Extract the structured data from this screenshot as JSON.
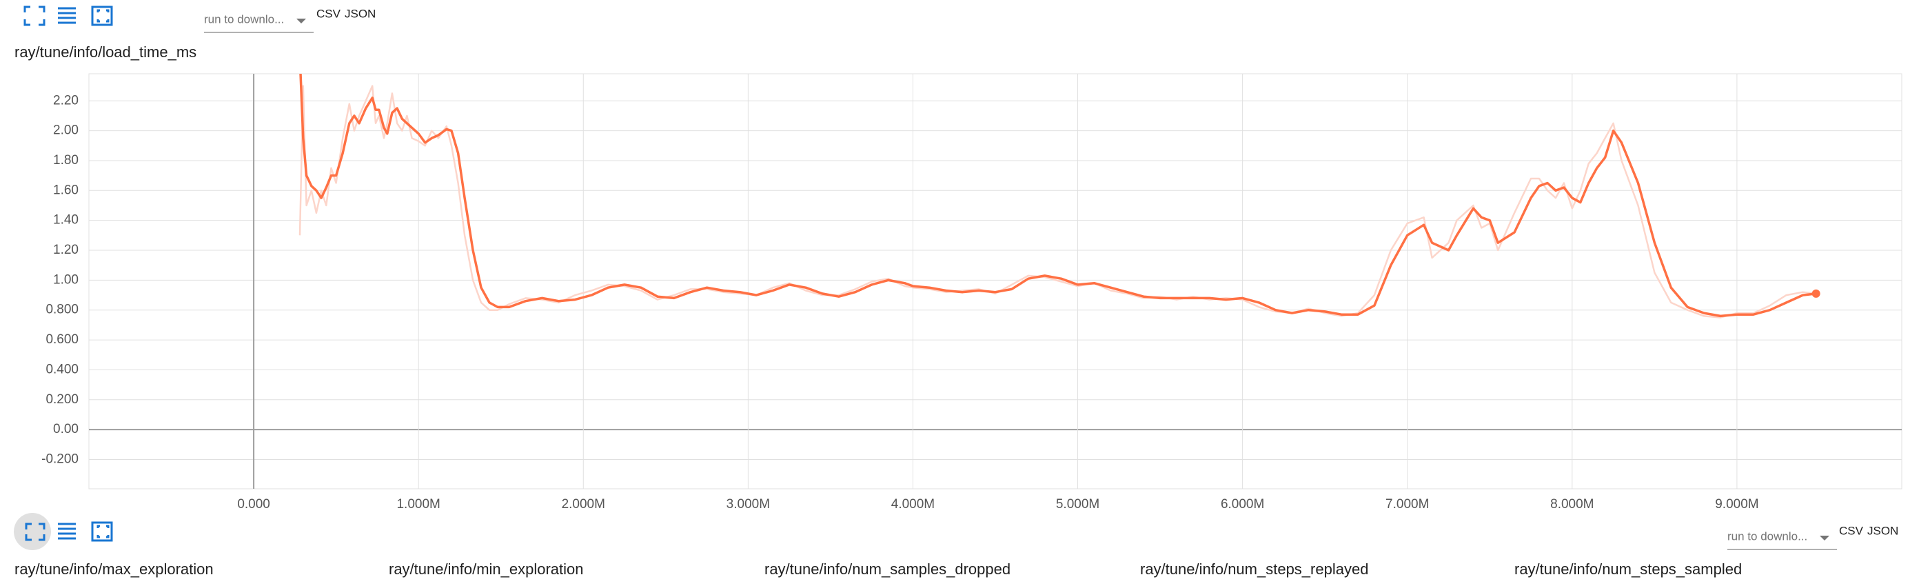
{
  "toolbars": [
    {
      "dropdown": "run to downlo...",
      "links": [
        "CSV",
        "JSON"
      ]
    },
    {
      "dropdown": "run to downlo...",
      "links": [
        "CSV",
        "JSON"
      ]
    }
  ],
  "cards": [
    {
      "title": "ray/tune/info/max_exploration"
    },
    {
      "title": "ray/tune/info/min_exploration"
    },
    {
      "title": "ray/tune/info/num_samples_dropped"
    },
    {
      "title": "ray/tune/info/num_steps_replayed"
    },
    {
      "title": "ray/tune/info/num_steps_sampled"
    }
  ],
  "chart_data": {
    "type": "line",
    "title": "ray/tune/info/load_time_ms",
    "x": [
      280000,
      300000,
      320000,
      350000,
      380000,
      410000,
      440000,
      470000,
      500000,
      540000,
      580000,
      610000,
      640000,
      680000,
      720000,
      740000,
      760000,
      790000,
      810000,
      840000,
      870000,
      900000,
      930000,
      960000,
      1000000,
      1040000,
      1080000,
      1120000,
      1170000,
      1200000,
      1240000,
      1280000,
      1330000,
      1380000,
      1430000,
      1480000,
      1550000,
      1650000,
      1750000,
      1850000,
      1950000,
      2050000,
      2150000,
      2250000,
      2350000,
      2450000,
      2550000,
      2650000,
      2750000,
      2850000,
      2950000,
      3050000,
      3150000,
      3250000,
      3350000,
      3450000,
      3550000,
      3650000,
      3750000,
      3850000,
      3950000,
      4000000,
      4100000,
      4200000,
      4300000,
      4400000,
      4500000,
      4600000,
      4700000,
      4800000,
      4900000,
      5000000,
      5100000,
      5200000,
      5300000,
      5400000,
      5500000,
      5600000,
      5700000,
      5800000,
      5900000,
      6000000,
      6100000,
      6200000,
      6300000,
      6400000,
      6500000,
      6600000,
      6700000,
      6800000,
      6900000,
      7000000,
      7100000,
      7150000,
      7250000,
      7300000,
      7400000,
      7450000,
      7500000,
      7550000,
      7650000,
      7750000,
      7800000,
      7850000,
      7900000,
      7950000,
      8000000,
      8050000,
      8100000,
      8150000,
      8200000,
      8250000,
      8300000,
      8400000,
      8500000,
      8600000,
      8700000,
      8800000,
      8900000,
      9000000,
      9100000,
      9200000,
      9300000,
      9400000,
      9480000
    ],
    "series": [
      {
        "color": "#fcd5ca",
        "values": [
          1.3,
          2.3,
          1.5,
          1.6,
          1.45,
          1.6,
          1.5,
          1.75,
          1.65,
          1.95,
          2.18,
          2.0,
          2.1,
          2.2,
          2.3,
          2.05,
          2.1,
          1.95,
          2.05,
          2.25,
          2.05,
          2.0,
          2.1,
          1.95,
          1.93,
          1.9,
          2.0,
          1.95,
          2.03,
          1.9,
          1.65,
          1.3,
          1.0,
          0.85,
          0.8,
          0.8,
          0.84,
          0.88,
          0.87,
          0.85,
          0.9,
          0.93,
          0.97,
          0.96,
          0.93,
          0.87,
          0.9,
          0.94,
          0.94,
          0.92,
          0.91,
          0.9,
          0.95,
          0.98,
          0.93,
          0.9,
          0.9,
          0.94,
          0.99,
          1.01,
          0.96,
          0.95,
          0.94,
          0.92,
          0.93,
          0.94,
          0.91,
          0.97,
          1.03,
          1.02,
          0.99,
          0.96,
          0.98,
          0.93,
          0.91,
          0.88,
          0.89,
          0.87,
          0.89,
          0.87,
          0.88,
          0.87,
          0.82,
          0.79,
          0.78,
          0.81,
          0.78,
          0.76,
          0.78,
          0.9,
          1.2,
          1.38,
          1.42,
          1.15,
          1.25,
          1.4,
          1.5,
          1.35,
          1.38,
          1.2,
          1.45,
          1.68,
          1.68,
          1.6,
          1.55,
          1.65,
          1.48,
          1.6,
          1.78,
          1.85,
          1.95,
          2.05,
          1.8,
          1.5,
          1.05,
          0.85,
          0.8,
          0.76,
          0.75,
          0.78,
          0.78,
          0.83,
          0.9,
          0.92,
          0.91
        ]
      },
      {
        "color": "#ff7043",
        "values": [
          2.5,
          1.95,
          1.7,
          1.63,
          1.6,
          1.55,
          1.62,
          1.7,
          1.7,
          1.85,
          2.05,
          2.1,
          2.05,
          2.15,
          2.22,
          2.14,
          2.14,
          2.02,
          1.98,
          2.12,
          2.15,
          2.08,
          2.05,
          2.02,
          1.98,
          1.92,
          1.95,
          1.97,
          2.01,
          2.0,
          1.85,
          1.55,
          1.2,
          0.95,
          0.85,
          0.82,
          0.82,
          0.86,
          0.88,
          0.86,
          0.87,
          0.9,
          0.95,
          0.97,
          0.95,
          0.89,
          0.88,
          0.92,
          0.95,
          0.93,
          0.92,
          0.9,
          0.93,
          0.97,
          0.95,
          0.91,
          0.89,
          0.92,
          0.97,
          1.0,
          0.98,
          0.96,
          0.95,
          0.93,
          0.92,
          0.93,
          0.92,
          0.94,
          1.01,
          1.03,
          1.01,
          0.97,
          0.98,
          0.95,
          0.92,
          0.89,
          0.88,
          0.88,
          0.88,
          0.88,
          0.87,
          0.88,
          0.85,
          0.8,
          0.78,
          0.8,
          0.79,
          0.77,
          0.77,
          0.83,
          1.1,
          1.3,
          1.37,
          1.25,
          1.2,
          1.3,
          1.48,
          1.42,
          1.4,
          1.25,
          1.32,
          1.55,
          1.63,
          1.65,
          1.6,
          1.62,
          1.55,
          1.52,
          1.65,
          1.75,
          1.82,
          2.0,
          1.92,
          1.65,
          1.25,
          0.95,
          0.82,
          0.78,
          0.76,
          0.77,
          0.77,
          0.8,
          0.85,
          0.9,
          0.91
        ]
      }
    ],
    "xlim": [
      -1000000,
      10000000
    ],
    "xticks": [
      {
        "value": 0,
        "label": "0.000"
      },
      {
        "value": 1000000,
        "label": "1.000M"
      },
      {
        "value": 2000000,
        "label": "2.000M"
      },
      {
        "value": 3000000,
        "label": "3.000M"
      },
      {
        "value": 4000000,
        "label": "4.000M"
      },
      {
        "value": 5000000,
        "label": "5.000M"
      },
      {
        "value": 6000000,
        "label": "6.000M"
      },
      {
        "value": 7000000,
        "label": "7.000M"
      },
      {
        "value": 8000000,
        "label": "8.000M"
      },
      {
        "value": 9000000,
        "label": "9.000M"
      }
    ],
    "ylim": [
      -0.396,
      2.381
    ],
    "yticks": [
      {
        "value": -0.2,
        "label": "-0.200"
      },
      {
        "value": 0,
        "label": "0.00"
      },
      {
        "value": 0.2,
        "label": "0.200"
      },
      {
        "value": 0.4,
        "label": "0.400"
      },
      {
        "value": 0.6,
        "label": "0.600"
      },
      {
        "value": 0.8,
        "label": "0.800"
      },
      {
        "value": 1.0,
        "label": "1.00"
      },
      {
        "value": 1.2,
        "label": "1.20"
      },
      {
        "value": 1.4,
        "label": "1.40"
      },
      {
        "value": 1.6,
        "label": "1.60"
      },
      {
        "value": 1.8,
        "label": "1.80"
      },
      {
        "value": 2.0,
        "label": "2.00"
      },
      {
        "value": 2.2,
        "label": "2.20"
      }
    ],
    "grid": true
  }
}
